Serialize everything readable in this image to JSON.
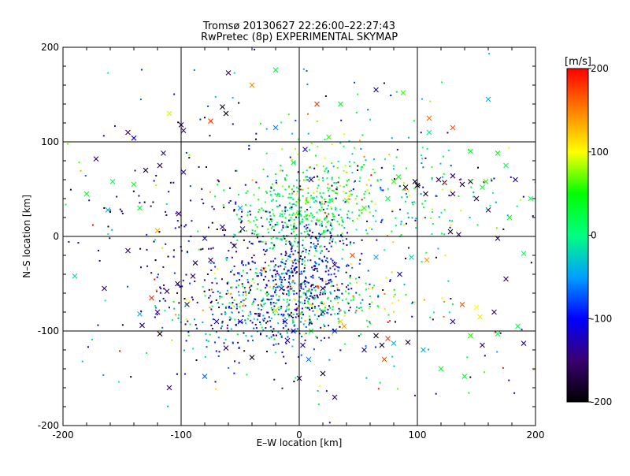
{
  "chart_data": {
    "type": "scatter",
    "title_line1": "Tromsø 20130627 22:26:00–22:27:43",
    "title_line2": "RwPretec (8p) EXPERIMENTAL SKYMAP",
    "xlabel": "E–W location [km]",
    "ylabel": "N–S location [km]",
    "xlim": [
      -200,
      200
    ],
    "ylim": [
      -200,
      200
    ],
    "xticks": [
      -200,
      -100,
      0,
      100,
      200
    ],
    "yticks": [
      -200,
      -100,
      0,
      100,
      200
    ],
    "grid": true,
    "colorbar": {
      "label": "[m/s]",
      "min": -200,
      "max": 200,
      "ticks": [
        200,
        100,
        0,
        -100,
        -200
      ],
      "stops": [
        "#000000",
        "#3a0070",
        "#0000ff",
        "#00a0ff",
        "#00ff80",
        "#00ff00",
        "#ffff00",
        "#ff8000",
        "#ff0000"
      ]
    },
    "markers": [
      "dot",
      "cross"
    ],
    "points": [
      {
        "x": -60,
        "y": 173,
        "v": -150,
        "m": "x"
      },
      {
        "x": -40,
        "y": 160,
        "v": 150,
        "m": "x"
      },
      {
        "x": -20,
        "y": 176,
        "v": 20,
        "m": "x"
      },
      {
        "x": 15,
        "y": 140,
        "v": 180,
        "m": "x"
      },
      {
        "x": 35,
        "y": 140,
        "v": 40,
        "m": "x"
      },
      {
        "x": 65,
        "y": 155,
        "v": -130,
        "m": "x"
      },
      {
        "x": 88,
        "y": 152,
        "v": 60,
        "m": "x"
      },
      {
        "x": -65,
        "y": 137,
        "v": -190,
        "m": "x"
      },
      {
        "x": -62,
        "y": 130,
        "v": -195,
        "m": "x"
      },
      {
        "x": -75,
        "y": 122,
        "v": 180,
        "m": "x"
      },
      {
        "x": -100,
        "y": 118,
        "v": -160,
        "m": "x"
      },
      {
        "x": -98,
        "y": 112,
        "v": -150,
        "m": "x"
      },
      {
        "x": -110,
        "y": 130,
        "v": 90,
        "m": "x"
      },
      {
        "x": -145,
        "y": 110,
        "v": -150,
        "m": "x"
      },
      {
        "x": -140,
        "y": 104,
        "v": -120,
        "m": "x"
      },
      {
        "x": -115,
        "y": 88,
        "v": -140,
        "m": "x"
      },
      {
        "x": -130,
        "y": 70,
        "v": -180,
        "m": "x"
      },
      {
        "x": -118,
        "y": 75,
        "v": -170,
        "m": "x"
      },
      {
        "x": -98,
        "y": 68,
        "v": -120,
        "m": "x"
      },
      {
        "x": -172,
        "y": 82,
        "v": -150,
        "m": "x"
      },
      {
        "x": -158,
        "y": 58,
        "v": 20,
        "m": "x"
      },
      {
        "x": -140,
        "y": 55,
        "v": 30,
        "m": "x"
      },
      {
        "x": -135,
        "y": 30,
        "v": 30,
        "m": "x"
      },
      {
        "x": -162,
        "y": 28,
        "v": -40,
        "m": "x"
      },
      {
        "x": -180,
        "y": 45,
        "v": 40,
        "m": "x"
      },
      {
        "x": -190,
        "y": -42,
        "v": -20,
        "m": "x"
      },
      {
        "x": -165,
        "y": -55,
        "v": -150,
        "m": "x"
      },
      {
        "x": -125,
        "y": -65,
        "v": 180,
        "m": "x"
      },
      {
        "x": -120,
        "y": -80,
        "v": -140,
        "m": "x"
      },
      {
        "x": -135,
        "y": -82,
        "v": -40,
        "m": "x"
      },
      {
        "x": -133,
        "y": -94,
        "v": -140,
        "m": "x"
      },
      {
        "x": -118,
        "y": -103,
        "v": -195,
        "m": "x"
      },
      {
        "x": -112,
        "y": -58,
        "v": -160,
        "m": "x"
      },
      {
        "x": -103,
        "y": -50,
        "v": -170,
        "m": "x"
      },
      {
        "x": -90,
        "y": -42,
        "v": -160,
        "m": "x"
      },
      {
        "x": -88,
        "y": -28,
        "v": -180,
        "m": "x"
      },
      {
        "x": -75,
        "y": -25,
        "v": -160,
        "m": "x"
      },
      {
        "x": -55,
        "y": -10,
        "v": -170,
        "m": "x"
      },
      {
        "x": -65,
        "y": 10,
        "v": -140,
        "m": "x"
      },
      {
        "x": -48,
        "y": 8,
        "v": -150,
        "m": "x"
      },
      {
        "x": -80,
        "y": -2,
        "v": -120,
        "m": "x"
      },
      {
        "x": -102,
        "y": 24,
        "v": -150,
        "m": "x"
      },
      {
        "x": -120,
        "y": 6,
        "v": 130,
        "m": "x"
      },
      {
        "x": -145,
        "y": -15,
        "v": -140,
        "m": "x"
      },
      {
        "x": -95,
        "y": -72,
        "v": -150,
        "m": "x"
      },
      {
        "x": -70,
        "y": -90,
        "v": -120,
        "m": "x"
      },
      {
        "x": -62,
        "y": -118,
        "v": -160,
        "m": "x"
      },
      {
        "x": -40,
        "y": -128,
        "v": -195,
        "m": "x"
      },
      {
        "x": -50,
        "y": -90,
        "v": -100,
        "m": "x"
      },
      {
        "x": -110,
        "y": -160,
        "v": -150,
        "m": "x"
      },
      {
        "x": -80,
        "y": -148,
        "v": -70,
        "m": "x"
      },
      {
        "x": -20,
        "y": 115,
        "v": -60,
        "m": "x"
      },
      {
        "x": 5,
        "y": 92,
        "v": -140,
        "m": "x"
      },
      {
        "x": 25,
        "y": 105,
        "v": 60,
        "m": "x"
      },
      {
        "x": 10,
        "y": 60,
        "v": -150,
        "m": "x"
      },
      {
        "x": 40,
        "y": 38,
        "v": 70,
        "m": "x"
      },
      {
        "x": 55,
        "y": 30,
        "v": 60,
        "m": "x"
      },
      {
        "x": 75,
        "y": 40,
        "v": 20,
        "m": "x"
      },
      {
        "x": 80,
        "y": 58,
        "v": 60,
        "m": "x"
      },
      {
        "x": 84,
        "y": 63,
        "v": 40,
        "m": "x"
      },
      {
        "x": 90,
        "y": 52,
        "v": -190,
        "m": "x"
      },
      {
        "x": 98,
        "y": 58,
        "v": -190,
        "m": "x"
      },
      {
        "x": 100,
        "y": 54,
        "v": -195,
        "m": "x"
      },
      {
        "x": 107,
        "y": 45,
        "v": -185,
        "m": "x"
      },
      {
        "x": 118,
        "y": 60,
        "v": -160,
        "m": "x"
      },
      {
        "x": 123,
        "y": 57,
        "v": -175,
        "m": "x"
      },
      {
        "x": 130,
        "y": 64,
        "v": -150,
        "m": "x"
      },
      {
        "x": 138,
        "y": 55,
        "v": -180,
        "m": "x"
      },
      {
        "x": 145,
        "y": 58,
        "v": -175,
        "m": "x"
      },
      {
        "x": 155,
        "y": 52,
        "v": 30,
        "m": "x"
      },
      {
        "x": 158,
        "y": 58,
        "v": 40,
        "m": "x"
      },
      {
        "x": 150,
        "y": 40,
        "v": -170,
        "m": "x"
      },
      {
        "x": 160,
        "y": 28,
        "v": -150,
        "m": "x"
      },
      {
        "x": 130,
        "y": 45,
        "v": -160,
        "m": "x"
      },
      {
        "x": 183,
        "y": 60,
        "v": -130,
        "m": "x"
      },
      {
        "x": 145,
        "y": 90,
        "v": 30,
        "m": "x"
      },
      {
        "x": 168,
        "y": 88,
        "v": 40,
        "m": "x"
      },
      {
        "x": 110,
        "y": 110,
        "v": -10,
        "m": "x"
      },
      {
        "x": 110,
        "y": 125,
        "v": 160,
        "m": "x"
      },
      {
        "x": 130,
        "y": 115,
        "v": 170,
        "m": "x"
      },
      {
        "x": 128,
        "y": 5,
        "v": -180,
        "m": "x"
      },
      {
        "x": 135,
        "y": 2,
        "v": -160,
        "m": "x"
      },
      {
        "x": 168,
        "y": -2,
        "v": -170,
        "m": "x"
      },
      {
        "x": 190,
        "y": -18,
        "v": 10,
        "m": "x"
      },
      {
        "x": 175,
        "y": -45,
        "v": -150,
        "m": "x"
      },
      {
        "x": 165,
        "y": -80,
        "v": -150,
        "m": "x"
      },
      {
        "x": 138,
        "y": -72,
        "v": 170,
        "m": "x"
      },
      {
        "x": 150,
        "y": -75,
        "v": 100,
        "m": "x"
      },
      {
        "x": 153,
        "y": -85,
        "v": 110,
        "m": "x"
      },
      {
        "x": 130,
        "y": -90,
        "v": -140,
        "m": "x"
      },
      {
        "x": 145,
        "y": -105,
        "v": 50,
        "m": "x"
      },
      {
        "x": 168,
        "y": -103,
        "v": 20,
        "m": "x"
      },
      {
        "x": 185,
        "y": -95,
        "v": 20,
        "m": "x"
      },
      {
        "x": 190,
        "y": -113,
        "v": -130,
        "m": "x"
      },
      {
        "x": 155,
        "y": -115,
        "v": -150,
        "m": "x"
      },
      {
        "x": 65,
        "y": -105,
        "v": -190,
        "m": "x"
      },
      {
        "x": 75,
        "y": -108,
        "v": 180,
        "m": "x"
      },
      {
        "x": 70,
        "y": -115,
        "v": -185,
        "m": "x"
      },
      {
        "x": 80,
        "y": -113,
        "v": -40,
        "m": "x"
      },
      {
        "x": 92,
        "y": -112,
        "v": -180,
        "m": "x"
      },
      {
        "x": 55,
        "y": -120,
        "v": -130,
        "m": "x"
      },
      {
        "x": 72,
        "y": -130,
        "v": 170,
        "m": "x"
      },
      {
        "x": 35,
        "y": -90,
        "v": 120,
        "m": "x"
      },
      {
        "x": 38,
        "y": -95,
        "v": 140,
        "m": "x"
      },
      {
        "x": 30,
        "y": -100,
        "v": -80,
        "m": "x"
      },
      {
        "x": 20,
        "y": -80,
        "v": -140,
        "m": "x"
      },
      {
        "x": 10,
        "y": -100,
        "v": 30,
        "m": "x"
      },
      {
        "x": -10,
        "y": -110,
        "v": -140,
        "m": "x"
      },
      {
        "x": 8,
        "y": -130,
        "v": -60,
        "m": "x"
      },
      {
        "x": 0,
        "y": -150,
        "v": -170,
        "m": "x"
      },
      {
        "x": 20,
        "y": -145,
        "v": -190,
        "m": "x"
      },
      {
        "x": 30,
        "y": -170,
        "v": -160,
        "m": "x"
      },
      {
        "x": -5,
        "y": -100,
        "v": -100,
        "m": "x"
      },
      {
        "x": 3,
        "y": -115,
        "v": -120,
        "m": "x"
      },
      {
        "x": -15,
        "y": -55,
        "v": -130,
        "m": "x"
      },
      {
        "x": 20,
        "y": -55,
        "v": -170,
        "m": "x"
      },
      {
        "x": 30,
        "y": -30,
        "v": -150,
        "m": "x"
      },
      {
        "x": 45,
        "y": -20,
        "v": 170,
        "m": "x"
      },
      {
        "x": 65,
        "y": -22,
        "v": -40,
        "m": "x"
      },
      {
        "x": 85,
        "y": -40,
        "v": -120,
        "m": "x"
      },
      {
        "x": 95,
        "y": -22,
        "v": -20,
        "m": "x"
      },
      {
        "x": 108,
        "y": -25,
        "v": 140,
        "m": "x"
      },
      {
        "x": 105,
        "y": -120,
        "v": -40,
        "m": "x"
      },
      {
        "x": 120,
        "y": -140,
        "v": 40,
        "m": "x"
      },
      {
        "x": 140,
        "y": -148,
        "v": 30,
        "m": "x"
      },
      {
        "x": -12,
        "y": -90,
        "v": -120,
        "m": "x"
      },
      {
        "x": -20,
        "y": -78,
        "v": 80,
        "m": "x"
      },
      {
        "x": -30,
        "y": -35,
        "v": 140,
        "m": "x"
      },
      {
        "x": -50,
        "y": 30,
        "v": -50,
        "m": "x"
      },
      {
        "x": 0,
        "y": 25,
        "v": 20,
        "m": "x"
      },
      {
        "x": -5,
        "y": 78,
        "v": 30,
        "m": "x"
      },
      {
        "x": 160,
        "y": 145,
        "v": -40,
        "m": "x"
      },
      {
        "x": 175,
        "y": 75,
        "v": 20,
        "m": "x"
      },
      {
        "x": 178,
        "y": 20,
        "v": 40,
        "m": "x"
      },
      {
        "x": 196,
        "y": 40,
        "v": 20,
        "m": "x"
      }
    ]
  }
}
